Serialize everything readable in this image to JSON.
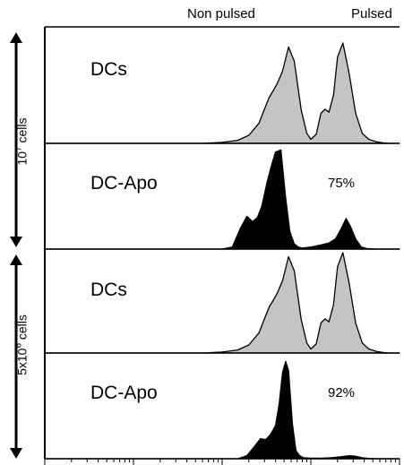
{
  "header": {
    "left_label": "Non pulsed",
    "right_label": "Pulsed"
  },
  "side_labels": [
    {
      "base": "10",
      "sup": "7",
      "suffix": " cells"
    },
    {
      "base": "5x10",
      "sup": "6",
      "suffix": " cells"
    }
  ],
  "colors": {
    "dc_fill": "#c4c4c4",
    "dcapo_fill": "#000000",
    "outline": "#000000"
  },
  "chart_data": {
    "type": "area",
    "x_axis": {
      "scale": "log",
      "range": [
        1,
        10000
      ],
      "labels": "none"
    },
    "panels": [
      {
        "label": "DCs",
        "percent": "",
        "series": {
          "name": "DCs",
          "fill": "gray",
          "x": [
            1,
            60,
            100,
            150,
            200,
            260,
            300,
            340,
            380,
            420,
            480,
            560,
            650,
            780,
            900,
            1000,
            1150,
            1300,
            1450,
            1600,
            1800,
            2000,
            2300,
            2700,
            3200,
            3800,
            4500,
            5500,
            6500,
            7500,
            8500,
            10000
          ],
          "y": [
            0,
            0,
            0.01,
            0.03,
            0.08,
            0.2,
            0.34,
            0.46,
            0.53,
            0.6,
            0.72,
            0.96,
            0.82,
            0.33,
            0.1,
            0.04,
            0.09,
            0.3,
            0.34,
            0.31,
            0.48,
            0.86,
            1.0,
            0.7,
            0.3,
            0.1,
            0.04,
            0.015,
            0.005,
            0,
            0,
            0
          ]
        }
      },
      {
        "label": "DC-Apo",
        "percent": "75%",
        "series": {
          "name": "DC-Apo",
          "fill": "black",
          "x": [
            1,
            100,
            130,
            160,
            190,
            220,
            250,
            280,
            320,
            360,
            400,
            460,
            520,
            580,
            650,
            720,
            800,
            1000,
            1300,
            1600,
            1900,
            2200,
            2500,
            2800,
            3200,
            3700,
            4300,
            5500,
            10000
          ],
          "y": [
            0,
            0,
            0.02,
            0.2,
            0.32,
            0.27,
            0.31,
            0.42,
            0.65,
            0.82,
            0.95,
            0.97,
            0.5,
            0.17,
            0.05,
            0.02,
            0.01,
            0.02,
            0.04,
            0.06,
            0.1,
            0.2,
            0.3,
            0.22,
            0.1,
            0.02,
            0.005,
            0,
            0
          ]
        }
      },
      {
        "label": "DCs",
        "percent": "",
        "series": {
          "name": "DCs",
          "fill": "gray",
          "x": [
            1,
            60,
            100,
            150,
            200,
            260,
            300,
            340,
            380,
            420,
            480,
            560,
            650,
            780,
            900,
            1000,
            1150,
            1300,
            1450,
            1600,
            1800,
            2000,
            2300,
            2700,
            3200,
            3800,
            4500,
            5500,
            6500,
            7500,
            8500,
            10000
          ],
          "y": [
            0,
            0,
            0.01,
            0.03,
            0.08,
            0.2,
            0.34,
            0.46,
            0.53,
            0.6,
            0.72,
            0.96,
            0.82,
            0.33,
            0.1,
            0.04,
            0.09,
            0.3,
            0.34,
            0.31,
            0.48,
            0.86,
            1.0,
            0.7,
            0.3,
            0.1,
            0.04,
            0.015,
            0.005,
            0,
            0,
            0
          ]
        }
      },
      {
        "label": "DC-Apo",
        "percent": "92%",
        "series": {
          "name": "DC-Apo",
          "fill": "black",
          "x": [
            1,
            150,
            190,
            230,
            270,
            310,
            350,
            400,
            440,
            480,
            520,
            560,
            620,
            680,
            750,
            830,
            1000,
            1300,
            1700,
            2200,
            2700,
            3200,
            3800,
            4500,
            5500,
            10000
          ],
          "y": [
            0,
            0,
            0.03,
            0.12,
            0.2,
            0.19,
            0.24,
            0.33,
            0.55,
            0.86,
            0.97,
            0.88,
            0.35,
            0.08,
            0.03,
            0.01,
            0.005,
            0.005,
            0.01,
            0.02,
            0.03,
            0.025,
            0.01,
            0.003,
            0,
            0
          ]
        }
      }
    ]
  }
}
